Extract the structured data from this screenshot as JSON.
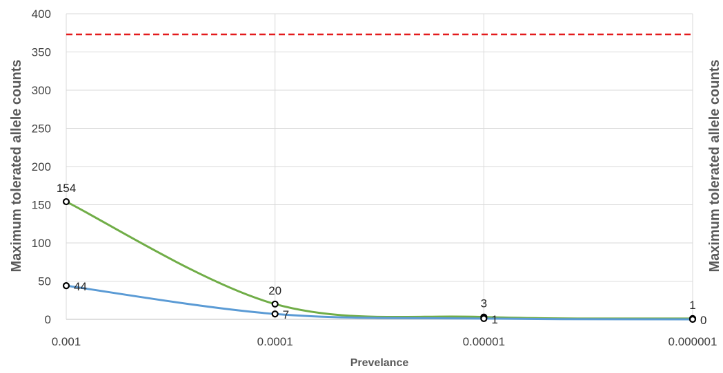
{
  "chart_data": {
    "type": "line",
    "xlabel": "Prevelance",
    "ylabel_left": "Maximum tolerated allele counts",
    "ylabel_right": "Maximum tolerated allele counts",
    "x_categories": [
      "0.001",
      "0.0001",
      "0.00001",
      "0.000001"
    ],
    "y_ticks": [
      "0",
      "50",
      "100",
      "150",
      "200",
      "250",
      "300",
      "350",
      "400"
    ],
    "ylim": [
      0,
      400
    ],
    "grid": true,
    "reference_line": {
      "value": 373,
      "color": "#e31a1c",
      "style": "dashed"
    },
    "series": [
      {
        "color": "#70ad47",
        "values": [
          154,
          20,
          3,
          1
        ],
        "labels": [
          "154",
          "20",
          "3",
          "1"
        ],
        "label_position": "above"
      },
      {
        "color": "#5b9bd5",
        "values": [
          44,
          7,
          1,
          0
        ],
        "labels": [
          "44",
          "7",
          "1",
          "0"
        ],
        "label_position": "right"
      }
    ]
  }
}
